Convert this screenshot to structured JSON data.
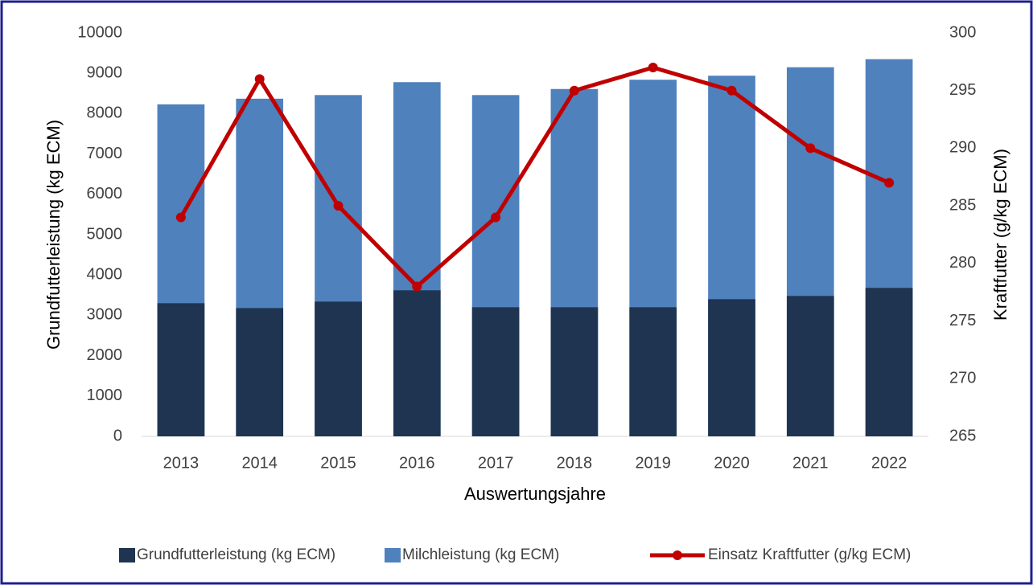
{
  "chart_data": {
    "type": "bar-line",
    "x_label": "Auswertungsjahre",
    "y_label": "Grundfutterleistung (kg ECM)",
    "y2_label": "Kraftfutter (g/kg ECM)",
    "categories": [
      "2013",
      "2014",
      "2015",
      "2016",
      "2017",
      "2018",
      "2019",
      "2020",
      "2021",
      "2022"
    ],
    "series": [
      {
        "name": "Grundfutterleistung (kg ECM)",
        "color": "#1f3451",
        "type": "bar",
        "values": [
          3300,
          3180,
          3340,
          3620,
          3200,
          3200,
          3200,
          3400,
          3480,
          3680
        ]
      },
      {
        "name": "Milchleistung (kg ECM)",
        "color": "#4f81bd",
        "type": "bar",
        "values": [
          8230,
          8370,
          8460,
          8780,
          8460,
          8610,
          8840,
          8940,
          9150,
          9350
        ]
      },
      {
        "name": "Einsatz Kraftfutter (g/kg ECM)",
        "color": "#c00000",
        "type": "line",
        "axis": "y2",
        "values": [
          284,
          296,
          285,
          278,
          284,
          295,
          297,
          295,
          290,
          287
        ]
      }
    ],
    "ylim": [
      0,
      10000
    ],
    "yticks": [
      0,
      1000,
      2000,
      3000,
      4000,
      5000,
      6000,
      7000,
      8000,
      9000,
      10000
    ],
    "y2lim": [
      265,
      300
    ],
    "y2ticks": [
      265,
      270,
      275,
      280,
      285,
      290,
      295,
      300
    ],
    "grid": false,
    "legend": "bottom"
  }
}
